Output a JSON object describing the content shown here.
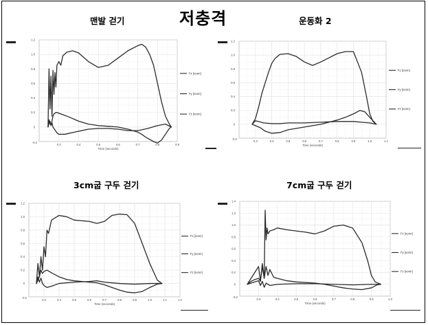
{
  "main_title": "저충격",
  "colors": {
    "line": "#2a2a2a",
    "grid": "#d4d4d4",
    "axis": "#888888"
  },
  "chart_data": [
    {
      "type": "line",
      "title": "맨발 걷기",
      "xlabel": "Time (seconds)",
      "xlim": [
        0.2,
        0.9
      ],
      "ylim": [
        -0.2,
        1.2
      ],
      "xticks": [
        {
          "v": 0.3,
          "label": "0.3"
        },
        {
          "v": 0.4,
          "label": "0.4"
        },
        {
          "v": 0.5,
          "label": "0.5"
        },
        {
          "v": 0.6,
          "label": "0.6"
        },
        {
          "v": 0.7,
          "label": "0.7"
        },
        {
          "v": 0.8,
          "label": "0.8"
        },
        {
          "v": 0.9,
          "label": "0.9"
        }
      ],
      "yticks": [
        {
          "v": 0,
          "label": "0"
        },
        {
          "v": 0.2,
          "label": "0.2"
        },
        {
          "v": 0.4,
          "label": "0.4"
        },
        {
          "v": 0.6,
          "label": "0.6"
        },
        {
          "v": 0.8,
          "label": "0.8"
        },
        {
          "v": 1.0,
          "label": "1.0"
        },
        {
          "v": 1.2,
          "label": "1.2"
        }
      ],
      "yminlabel": "-0.2",
      "series": [
        {
          "name": "Fx [norm]",
          "x": [
            0.245,
            0.25,
            0.255,
            0.26,
            0.265,
            0.27,
            0.275,
            0.28,
            0.285,
            0.29,
            0.3,
            0.32,
            0.35,
            0.4,
            0.45,
            0.5,
            0.55,
            0.6,
            0.65,
            0.7,
            0.72,
            0.74,
            0.76,
            0.78,
            0.8,
            0.82,
            0.84,
            0.86,
            0.87
          ],
          "y": [
            0.0,
            0.1,
            0.05,
            0.02,
            0.08,
            0.15,
            0.18,
            0.19,
            0.2,
            0.2,
            0.19,
            0.17,
            0.14,
            0.08,
            0.04,
            0.02,
            0.01,
            0.0,
            -0.03,
            -0.07,
            -0.1,
            -0.14,
            -0.17,
            -0.2,
            -0.22,
            -0.18,
            -0.1,
            -0.02,
            0.0
          ]
        },
        {
          "name": "Fy [norm]",
          "x": [
            0.245,
            0.25,
            0.255,
            0.26,
            0.265,
            0.27,
            0.275,
            0.28,
            0.285,
            0.29,
            0.3,
            0.31,
            0.32,
            0.34,
            0.37,
            0.4,
            0.45,
            0.5,
            0.55,
            0.6,
            0.65,
            0.7,
            0.72,
            0.74,
            0.76,
            0.78,
            0.8,
            0.82,
            0.84,
            0.86,
            0.87
          ],
          "y": [
            0.0,
            0.8,
            0.25,
            0.7,
            0.15,
            0.78,
            0.45,
            0.75,
            0.55,
            0.85,
            0.9,
            0.85,
            0.98,
            1.03,
            1.05,
            1.02,
            0.9,
            0.82,
            0.85,
            0.95,
            1.05,
            1.12,
            1.14,
            1.1,
            1.0,
            0.85,
            0.6,
            0.35,
            0.15,
            0.04,
            0.0
          ]
        },
        {
          "name": "Fz [norm]",
          "x": [
            0.245,
            0.25,
            0.255,
            0.26,
            0.265,
            0.27,
            0.28,
            0.29,
            0.3,
            0.33,
            0.38,
            0.45,
            0.5,
            0.55,
            0.6,
            0.65,
            0.7,
            0.75,
            0.8,
            0.84,
            0.87
          ],
          "y": [
            0.0,
            0.05,
            0.08,
            0.02,
            0.06,
            0.0,
            -0.04,
            -0.08,
            -0.1,
            -0.1,
            -0.07,
            -0.03,
            -0.02,
            -0.02,
            -0.03,
            -0.05,
            -0.05,
            -0.02,
            0.02,
            0.04,
            0.0
          ]
        }
      ]
    },
    {
      "type": "line",
      "title": "운동화 2",
      "xlabel": "Time (seconds)",
      "xlim": [
        0.2,
        1.1
      ],
      "ylim": [
        -0.2,
        1.2
      ],
      "xticks": [
        {
          "v": 0.3,
          "label": "0.3"
        },
        {
          "v": 0.4,
          "label": "0.4"
        },
        {
          "v": 0.5,
          "label": "0.5"
        },
        {
          "v": 0.6,
          "label": "0.6"
        },
        {
          "v": 0.7,
          "label": "0.7"
        },
        {
          "v": 0.8,
          "label": "0.8"
        },
        {
          "v": 0.9,
          "label": "0.9"
        },
        {
          "v": 1.0,
          "label": "1.0"
        },
        {
          "v": 1.1,
          "label": "1.1"
        }
      ],
      "yticks": [
        {
          "v": 0,
          "label": "0"
        },
        {
          "v": 0.2,
          "label": "0.2"
        },
        {
          "v": 0.4,
          "label": "0.4"
        },
        {
          "v": 0.6,
          "label": "0.6"
        },
        {
          "v": 0.8,
          "label": "0.8"
        },
        {
          "v": 1.0,
          "label": "1.0"
        },
        {
          "v": 1.2,
          "label": "1.2"
        }
      ],
      "yminlabel": "-0.2",
      "series": [
        {
          "name": "Fx [norm]",
          "x": [
            0.28,
            0.3,
            0.33,
            0.36,
            0.4,
            0.45,
            0.5,
            0.6,
            0.7,
            0.8,
            0.85,
            0.9,
            0.94,
            0.97,
            1.0,
            1.02,
            1.04
          ],
          "y": [
            0.0,
            -0.02,
            -0.05,
            -0.1,
            -0.13,
            -0.12,
            -0.08,
            -0.04,
            0.0,
            0.06,
            0.1,
            0.15,
            0.2,
            0.18,
            0.1,
            0.05,
            0.0
          ]
        },
        {
          "name": "Fy [norm]",
          "x": [
            0.28,
            0.3,
            0.32,
            0.34,
            0.36,
            0.38,
            0.4,
            0.42,
            0.45,
            0.5,
            0.55,
            0.6,
            0.65,
            0.7,
            0.75,
            0.8,
            0.85,
            0.9,
            0.95,
            0.98,
            1.0,
            1.02,
            1.04
          ],
          "y": [
            0.0,
            0.08,
            0.25,
            0.45,
            0.6,
            0.75,
            0.88,
            0.95,
            1.01,
            1.02,
            0.98,
            0.9,
            0.85,
            0.9,
            0.96,
            1.02,
            1.05,
            1.05,
            0.75,
            0.4,
            0.15,
            0.04,
            0.0
          ]
        },
        {
          "name": "Fz [norm]",
          "x": [
            0.28,
            0.3,
            0.32,
            0.35,
            0.4,
            0.45,
            0.5,
            0.6,
            0.7,
            0.8,
            0.9,
            0.95,
            1.0,
            1.04
          ],
          "y": [
            0.0,
            0.05,
            0.04,
            0.02,
            0.01,
            0.01,
            0.02,
            0.02,
            0.03,
            0.04,
            0.04,
            0.03,
            0.02,
            0.0
          ]
        }
      ]
    },
    {
      "type": "line",
      "title": "3cm굽 구두 걷기",
      "xlabel": "Time (seconds)",
      "xlim": [
        0.2,
        1.2
      ],
      "ylim": [
        -0.2,
        1.2
      ],
      "xticks": [
        {
          "v": 0.3,
          "label": "0.3"
        },
        {
          "v": 0.4,
          "label": "0.4"
        },
        {
          "v": 0.5,
          "label": "0.5"
        },
        {
          "v": 0.6,
          "label": "0.6"
        },
        {
          "v": 0.7,
          "label": "0.7"
        },
        {
          "v": 0.8,
          "label": "0.8"
        },
        {
          "v": 0.9,
          "label": "0.9"
        },
        {
          "v": 1.0,
          "label": "1.0"
        },
        {
          "v": 1.1,
          "label": "1.1"
        },
        {
          "v": 1.2,
          "label": "1.2"
        }
      ],
      "yticks": [
        {
          "v": 0,
          "label": "0"
        },
        {
          "v": 0.2,
          "label": "0.2"
        },
        {
          "v": 0.4,
          "label": "0.4"
        },
        {
          "v": 0.6,
          "label": "0.6"
        },
        {
          "v": 0.8,
          "label": "0.8"
        },
        {
          "v": 1.0,
          "label": "1.0"
        },
        {
          "v": 1.2,
          "label": "1.2"
        }
      ],
      "yminlabel": "-0.2",
      "series": [
        {
          "name": "Fx [norm]",
          "x": [
            0.25,
            0.26,
            0.27,
            0.28,
            0.29,
            0.3,
            0.32,
            0.35,
            0.4,
            0.45,
            0.5,
            0.55,
            0.6,
            0.65,
            0.7,
            0.75,
            0.8,
            0.85,
            0.9,
            0.95,
            1.0,
            1.05,
            1.08
          ],
          "y": [
            0.0,
            0.05,
            0.1,
            0.2,
            0.15,
            0.18,
            0.2,
            0.16,
            0.1,
            0.06,
            0.04,
            0.03,
            0.02,
            0.01,
            -0.02,
            -0.06,
            -0.1,
            -0.13,
            -0.14,
            -0.12,
            -0.06,
            -0.01,
            0.0
          ]
        },
        {
          "name": "Fy [norm]",
          "x": [
            0.25,
            0.26,
            0.27,
            0.28,
            0.29,
            0.3,
            0.31,
            0.32,
            0.33,
            0.35,
            0.4,
            0.45,
            0.5,
            0.55,
            0.6,
            0.65,
            0.7,
            0.75,
            0.8,
            0.85,
            0.9,
            0.95,
            1.0,
            1.05,
            1.08
          ],
          "y": [
            0.0,
            0.3,
            0.1,
            0.4,
            0.2,
            0.55,
            0.4,
            0.8,
            0.75,
            0.95,
            1.02,
            1.0,
            0.95,
            0.94,
            0.93,
            0.9,
            0.93,
            1.02,
            1.04,
            1.03,
            0.9,
            0.6,
            0.3,
            0.05,
            0.0
          ]
        },
        {
          "name": "Fz [norm]",
          "x": [
            0.25,
            0.26,
            0.27,
            0.28,
            0.29,
            0.3,
            0.32,
            0.35,
            0.4,
            0.5,
            0.6,
            0.65,
            0.7,
            0.8,
            0.9,
            1.0,
            1.05,
            1.08
          ],
          "y": [
            0.0,
            0.1,
            0.02,
            0.08,
            0.0,
            -0.03,
            -0.06,
            -0.04,
            0.0,
            0.02,
            0.03,
            0.04,
            0.02,
            0.0,
            -0.01,
            0.0,
            0.0,
            0.0
          ]
        }
      ]
    },
    {
      "type": "line",
      "title": "7cm굽 구두 걷기",
      "xlabel": "Time (seconds)",
      "xlim": [
        0.2,
        1.0
      ],
      "ylim": [
        -0.2,
        1.4
      ],
      "xticks": [
        {
          "v": 0.3,
          "label": "0.3"
        },
        {
          "v": 0.4,
          "label": "0.4"
        },
        {
          "v": 0.5,
          "label": "0.5"
        },
        {
          "v": 0.6,
          "label": "0.6"
        },
        {
          "v": 0.7,
          "label": "0.7"
        },
        {
          "v": 0.8,
          "label": "0.8"
        },
        {
          "v": 0.9,
          "label": "0.9"
        },
        {
          "v": 1.0,
          "label": "1.0"
        }
      ],
      "yticks": [
        {
          "v": 0,
          "label": "0"
        },
        {
          "v": 0.2,
          "label": "0.2"
        },
        {
          "v": 0.4,
          "label": "0.4"
        },
        {
          "v": 0.6,
          "label": "0.6"
        },
        {
          "v": 0.8,
          "label": "0.8"
        },
        {
          "v": 1.0,
          "label": "1.0"
        },
        {
          "v": 1.2,
          "label": "1.2"
        },
        {
          "v": 1.4,
          "label": "1.4"
        }
      ],
      "yminlabel": "-0.2",
      "series": [
        {
          "name": "Fx [norm]",
          "x": [
            0.24,
            0.26,
            0.28,
            0.3,
            0.31,
            0.32,
            0.33,
            0.34,
            0.35,
            0.36,
            0.38,
            0.4,
            0.45,
            0.5,
            0.55,
            0.6,
            0.65,
            0.7,
            0.75,
            0.8,
            0.85,
            0.9,
            0.93,
            0.95
          ],
          "y": [
            0.0,
            0.1,
            0.2,
            0.3,
            0.05,
            0.35,
            0.1,
            0.3,
            0.15,
            0.25,
            0.12,
            0.1,
            0.06,
            0.04,
            0.03,
            0.02,
            0.0,
            -0.03,
            -0.06,
            -0.08,
            -0.09,
            -0.06,
            -0.01,
            0.0
          ]
        },
        {
          "name": "Fy [norm]",
          "x": [
            0.24,
            0.26,
            0.28,
            0.3,
            0.31,
            0.32,
            0.33,
            0.335,
            0.34,
            0.345,
            0.35,
            0.36,
            0.38,
            0.4,
            0.45,
            0.5,
            0.55,
            0.6,
            0.65,
            0.7,
            0.75,
            0.8,
            0.85,
            0.88,
            0.9,
            0.92,
            0.95
          ],
          "y": [
            0.0,
            0.05,
            0.08,
            0.1,
            0.05,
            0.3,
            0.1,
            1.25,
            0.75,
            0.95,
            0.85,
            0.9,
            0.92,
            0.95,
            0.92,
            0.9,
            0.88,
            0.85,
            0.9,
            0.98,
            1.0,
            0.95,
            0.7,
            0.4,
            0.15,
            0.04,
            0.0
          ]
        },
        {
          "name": "Fz [norm]",
          "x": [
            0.24,
            0.26,
            0.28,
            0.3,
            0.31,
            0.32,
            0.33,
            0.34,
            0.36,
            0.4,
            0.5,
            0.6,
            0.7,
            0.8,
            0.9,
            0.95
          ],
          "y": [
            0.0,
            0.02,
            0.04,
            0.06,
            -0.02,
            0.05,
            -0.05,
            0.02,
            -0.02,
            0.0,
            0.01,
            0.01,
            0.0,
            -0.01,
            0.0,
            0.0
          ]
        }
      ]
    }
  ]
}
